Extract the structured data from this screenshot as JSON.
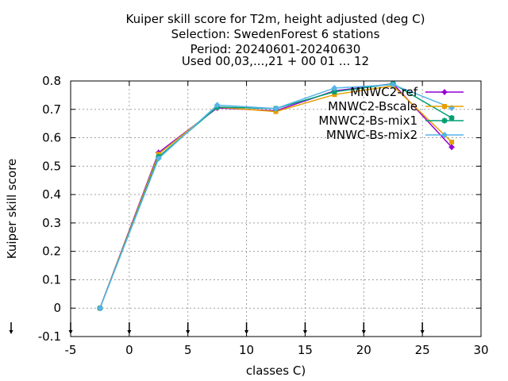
{
  "chart_data": {
    "type": "line",
    "title_lines": [
      "Kuiper skill score  for T2m, height adjusted (deg C)",
      "Selection: SwedenForest      6 stations",
      "Period: 20240601-20240630",
      "Used 00,03,...,21 + 00 01 ... 12"
    ],
    "xlabel": "classes C)",
    "ylabel": "Kuiper skill score",
    "xlim": [
      -5,
      30
    ],
    "ylim": [
      -0.1,
      0.8
    ],
    "xticks": [
      -5,
      0,
      5,
      10,
      15,
      20,
      25,
      30
    ],
    "yticks": [
      -0.1,
      0,
      0.1,
      0.2,
      0.3,
      0.4,
      0.5,
      0.6,
      0.7,
      0.8
    ],
    "xtick_labels": [
      "-5",
      "0",
      "5",
      "10",
      "15",
      "20",
      "25",
      "30"
    ],
    "ytick_labels": [
      "-0.1",
      "0",
      "0.1",
      "0.2",
      "0.3",
      "0.4",
      "0.5",
      "0.6",
      "0.7",
      "0.8"
    ],
    "grid": true,
    "legend_position": "top-right",
    "class_markers_x": [
      -5,
      0,
      5,
      10,
      15,
      20,
      25
    ],
    "x": [
      -2.5,
      2.5,
      7.5,
      12.5,
      17.5,
      22.5,
      27.5
    ],
    "series": [
      {
        "name": "MNWC2-ref",
        "color": "#9400d3",
        "marker": "plus",
        "values": [
          0.0,
          0.548,
          0.705,
          0.695,
          0.765,
          0.79,
          0.567
        ]
      },
      {
        "name": "MNWC2-Bscale",
        "color": "#e69f00",
        "marker": "square",
        "values": [
          0.0,
          0.542,
          0.708,
          0.692,
          0.752,
          0.783,
          0.585
        ]
      },
      {
        "name": "MNWC2-Bs-mix1",
        "color": "#009e73",
        "marker": "star",
        "values": [
          0.0,
          0.533,
          0.708,
          0.703,
          0.762,
          0.79,
          0.67
        ]
      },
      {
        "name": "MNWC-Bs-mix2",
        "color": "#56b4e9",
        "marker": "diamond",
        "values": [
          0.0,
          0.527,
          0.715,
          0.703,
          0.775,
          0.787,
          0.705
        ]
      }
    ]
  }
}
